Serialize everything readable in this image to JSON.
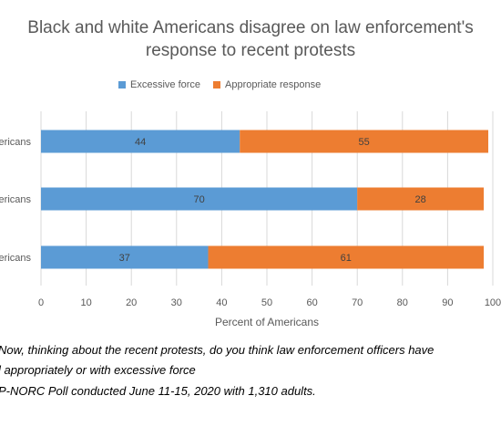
{
  "chart_data": {
    "type": "bar",
    "orientation": "horizontal",
    "stacked": true,
    "title": [
      "Black and white Americans disagree on law enforcement's",
      "response to recent protests"
    ],
    "categories": [
      "mericans",
      "mericans",
      "mericans"
    ],
    "series": [
      {
        "name": "Excessive force",
        "values": [
          44,
          70,
          37
        ],
        "color": "#5B9BD5"
      },
      {
        "name": "Appropriate response",
        "values": [
          55,
          28,
          61
        ],
        "color": "#ED7D31"
      }
    ],
    "xlabel": "Percent of Americans",
    "xlim": [
      0,
      100
    ],
    "xticks": [
      0,
      10,
      20,
      30,
      40,
      50,
      60,
      70,
      80,
      90,
      100
    ],
    "grid": true,
    "legend_position": "top"
  },
  "footnotes": [
    "Now, thinking about the recent protests, do you think law enforcement officers have",
    "l appropriately or with excessive force",
    "P-NORC Poll conducted June 11-15, 2020 with 1,310 adults."
  ]
}
